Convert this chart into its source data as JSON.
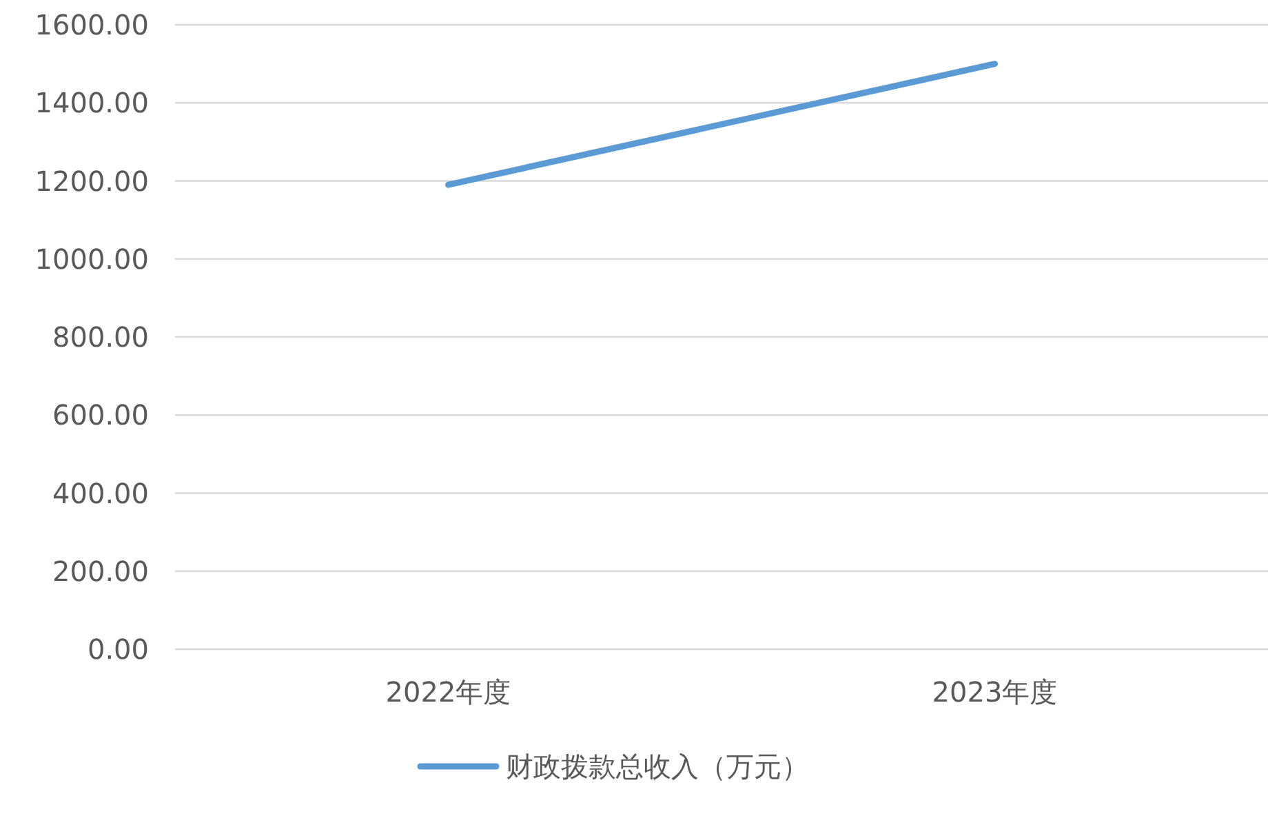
{
  "chart_data": {
    "type": "line",
    "categories": [
      "2022年度",
      "2023年度"
    ],
    "series": [
      {
        "name": "财政拨款总收入（万元）",
        "color": "#5b9bd5",
        "values": [
          1190,
          1500
        ]
      }
    ],
    "ylim": [
      0,
      1600
    ],
    "yticks": [
      {
        "value": 0,
        "label": "0.00"
      },
      {
        "value": 200,
        "label": "200.00"
      },
      {
        "value": 400,
        "label": "400.00"
      },
      {
        "value": 600,
        "label": "600.00"
      },
      {
        "value": 800,
        "label": "800.00"
      },
      {
        "value": 1000,
        "label": "1000.00"
      },
      {
        "value": 1200,
        "label": "1200.00"
      },
      {
        "value": 1400,
        "label": "1400.00"
      },
      {
        "value": 1600,
        "label": "1600.00"
      }
    ],
    "grid": "y",
    "legend": "bottom"
  }
}
